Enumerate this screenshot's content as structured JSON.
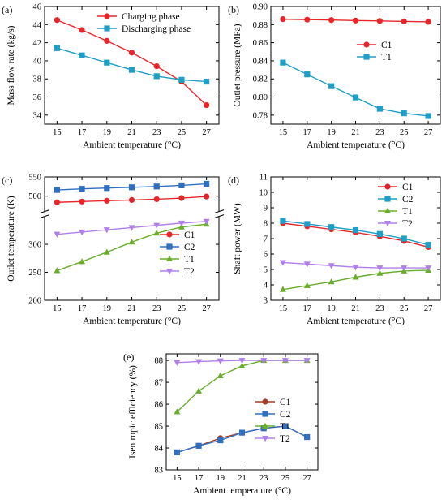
{
  "figure": {
    "xlabel": "Ambient temperature (°C)"
  },
  "colors": {
    "red": "#e8262a",
    "cyan": "#1f9ec6",
    "blue": "#2f6fc0",
    "green": "#6aad2c",
    "purple": "#b080ea",
    "brown": "#a43c2a"
  },
  "chart_data": [
    {
      "panel": "(a)",
      "type": "line",
      "x": [
        15,
        17,
        19,
        21,
        23,
        25,
        27
      ],
      "xlim": [
        14,
        28
      ],
      "ylim": [
        33,
        46
      ],
      "yticks": [
        34,
        36,
        38,
        40,
        42,
        44,
        46
      ],
      "xlabel": "Ambient temperature (°C)",
      "ylabel": "Mass flow rate (kg/s)",
      "legend_position": "top-right",
      "series": [
        {
          "name": "Charging phase",
          "marker": "circle",
          "color": "#e8262a",
          "values": [
            44.5,
            43.4,
            42.2,
            40.9,
            39.4,
            37.7,
            35.1
          ]
        },
        {
          "name": "Discharging phase",
          "marker": "square",
          "color": "#1f9ec6",
          "values": [
            41.4,
            40.6,
            39.8,
            39.0,
            38.3,
            37.9,
            37.7
          ]
        }
      ]
    },
    {
      "panel": "(b)",
      "type": "line",
      "x": [
        15,
        17,
        19,
        21,
        23,
        25,
        27
      ],
      "xlim": [
        14,
        28
      ],
      "ylim": [
        0.77,
        0.9
      ],
      "yticks": [
        0.78,
        0.8,
        0.82,
        0.84,
        0.86,
        0.88,
        0.9
      ],
      "ytick_labels": [
        "0.78",
        "0.80",
        "0.82",
        "0.84",
        "0.86",
        "0.88",
        "0.90"
      ],
      "xlabel": "Ambient temperature (°C)",
      "ylabel": "Outlet pressure (MPa)",
      "legend_position": "center-right",
      "series": [
        {
          "name": "C1",
          "marker": "circle",
          "color": "#e8262a",
          "values": [
            0.886,
            0.8855,
            0.885,
            0.8845,
            0.884,
            0.8835,
            0.883
          ]
        },
        {
          "name": "T1",
          "marker": "square",
          "color": "#1f9ec6",
          "values": [
            0.838,
            0.825,
            0.812,
            0.7995,
            0.787,
            0.782,
            0.779
          ]
        }
      ]
    },
    {
      "panel": "(c)",
      "type": "line",
      "x": [
        15,
        17,
        19,
        21,
        23,
        25,
        27
      ],
      "xlim": [
        14,
        28
      ],
      "axis_break": true,
      "ylim_lower": [
        200,
        350
      ],
      "yticks_lower": [
        200,
        250,
        300
      ],
      "ylim_upper": [
        460,
        550
      ],
      "yticks_upper": [
        500,
        550
      ],
      "xlabel": "Ambient temperature (°C)",
      "ylabel": "Outlet temperature (K)",
      "legend_position": "lower-right",
      "series": [
        {
          "name": "C1",
          "marker": "circle",
          "color": "#e8262a",
          "values": [
            484,
            486,
            488,
            490,
            492,
            495,
            499
          ]
        },
        {
          "name": "C2",
          "marker": "square",
          "color": "#2f6fc0",
          "values": [
            516,
            519,
            521,
            523,
            525,
            528,
            532
          ]
        },
        {
          "name": "T1",
          "marker": "triangle-up",
          "color": "#6aad2c",
          "values": [
            253,
            269,
            286,
            304,
            320,
            331,
            336
          ]
        },
        {
          "name": "T2",
          "marker": "triangle-down",
          "color": "#b080ea",
          "values": [
            318,
            322,
            326,
            330,
            334,
            338,
            341
          ]
        }
      ]
    },
    {
      "panel": "(d)",
      "type": "line",
      "x": [
        15,
        17,
        19,
        21,
        23,
        25,
        27
      ],
      "xlim": [
        14,
        28
      ],
      "ylim": [
        3,
        11
      ],
      "yticks": [
        3,
        4,
        5,
        6,
        7,
        8,
        9,
        10,
        11
      ],
      "xlabel": "Ambient temperature (°C)",
      "ylabel": "Shaft power (MW)",
      "legend_position": "top-right",
      "series": [
        {
          "name": "C1",
          "marker": "circle",
          "color": "#e8262a",
          "values": [
            8.0,
            7.8,
            7.6,
            7.4,
            7.15,
            6.85,
            6.45
          ]
        },
        {
          "name": "C2",
          "marker": "square",
          "color": "#1f9ec6",
          "values": [
            8.15,
            7.95,
            7.75,
            7.55,
            7.3,
            7.0,
            6.6
          ]
        },
        {
          "name": "T1",
          "marker": "triangle-up",
          "color": "#6aad2c",
          "values": [
            3.7,
            3.95,
            4.2,
            4.5,
            4.75,
            4.9,
            4.95
          ]
        },
        {
          "name": "T2",
          "marker": "triangle-down",
          "color": "#b080ea",
          "values": [
            5.45,
            5.35,
            5.25,
            5.15,
            5.1,
            5.1,
            5.1
          ]
        }
      ]
    },
    {
      "panel": "(e)",
      "type": "line",
      "x": [
        15,
        17,
        19,
        21,
        23,
        25,
        27
      ],
      "xlim": [
        14,
        28
      ],
      "ylim": [
        83,
        88.3
      ],
      "yticks": [
        83,
        84,
        85,
        86,
        87,
        88
      ],
      "xlabel": "Ambient temperature (°C)",
      "ylabel": "Isentropic efficiency (%)",
      "legend_position": "center-right",
      "series": [
        {
          "name": "C1",
          "marker": "circle",
          "color": "#a43c2a",
          "values": [
            83.8,
            84.1,
            84.45,
            84.7,
            84.9,
            85.0,
            84.5
          ]
        },
        {
          "name": "C2",
          "marker": "square",
          "color": "#2f6fc0",
          "values": [
            83.8,
            84.1,
            84.35,
            84.7,
            84.9,
            85.0,
            84.5
          ]
        },
        {
          "name": "T1",
          "marker": "triangle-up",
          "color": "#6aad2c",
          "values": [
            85.65,
            86.6,
            87.3,
            87.75,
            88.0,
            88.0,
            88.0
          ]
        },
        {
          "name": "T2",
          "marker": "triangle-down",
          "color": "#b080ea",
          "values": [
            87.9,
            87.95,
            87.98,
            88.0,
            88.0,
            88.0,
            88.0
          ]
        }
      ]
    }
  ]
}
